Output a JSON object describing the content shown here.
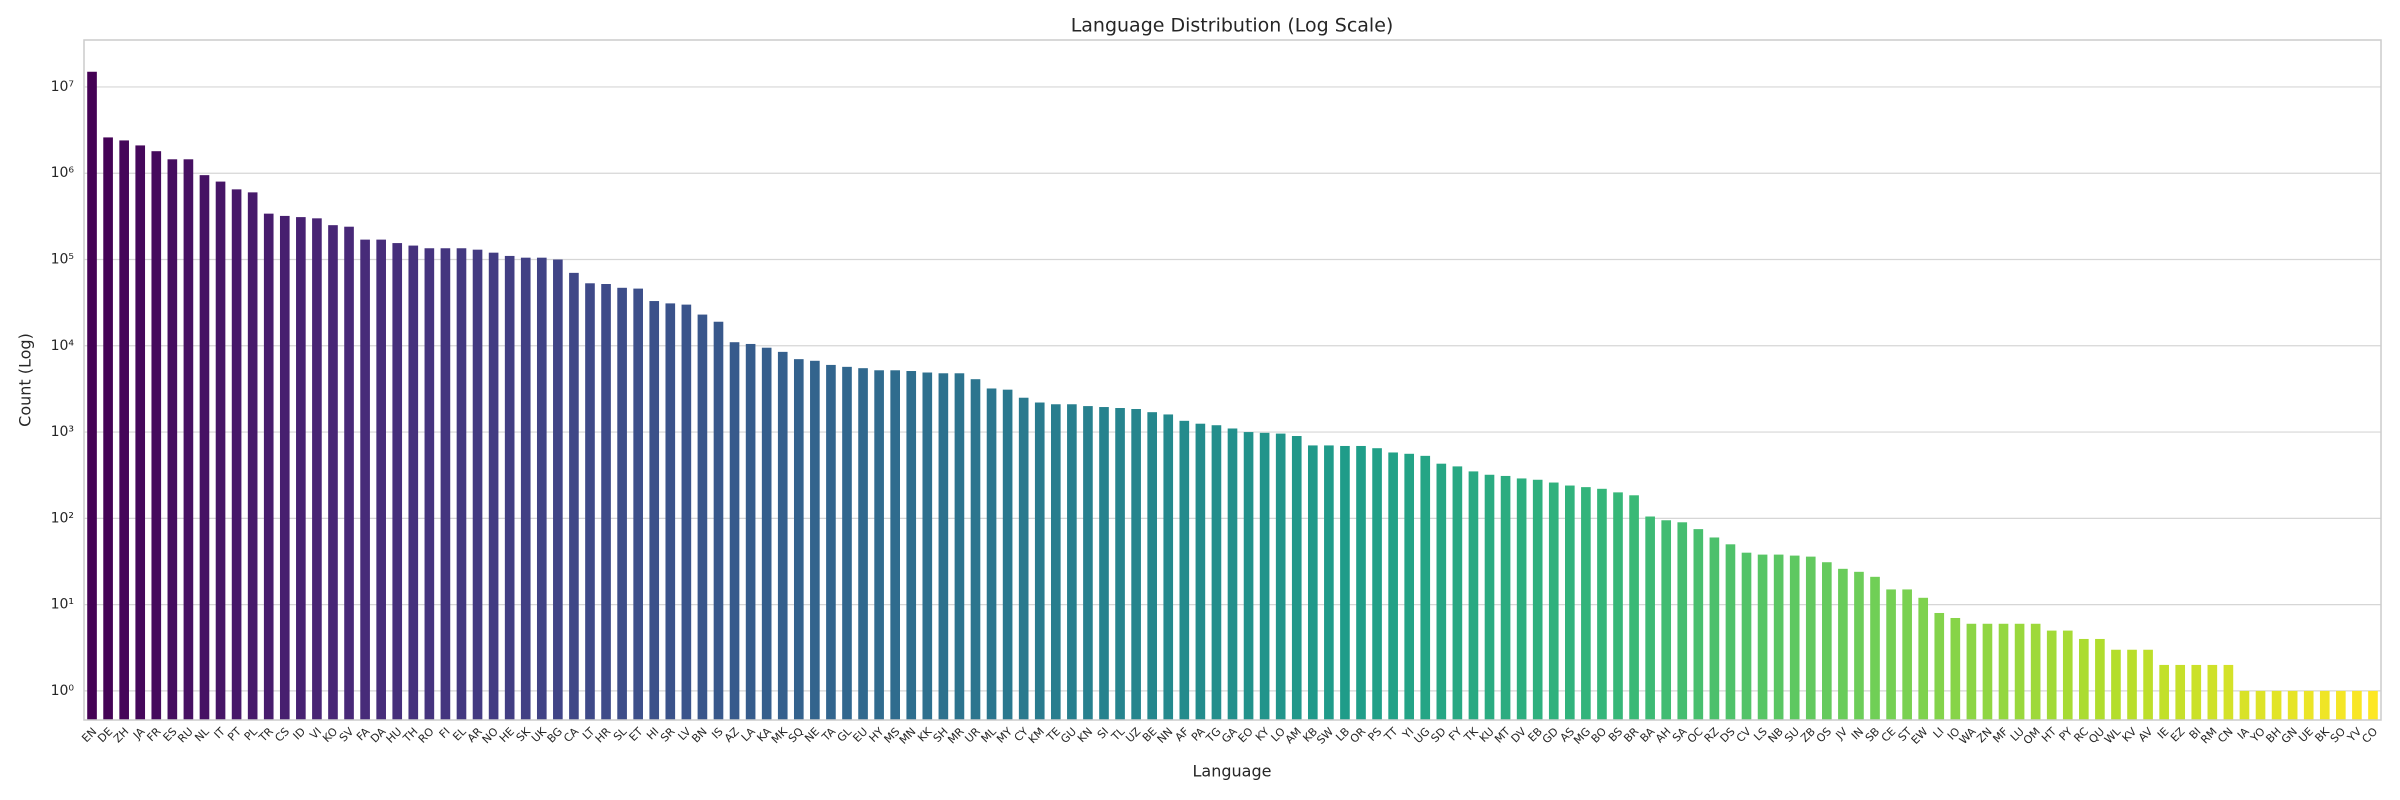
{
  "chart_data": {
    "type": "bar",
    "title": "Language Distribution (Log Scale)",
    "x_label": "Language",
    "y_label": "Count (Log)",
    "categories": [
      "EN",
      "DE",
      "ZH",
      "JA",
      "FR",
      "ES",
      "RU",
      "NL",
      "IT",
      "PT",
      "PL",
      "TR",
      "CS",
      "ID",
      "VI",
      "KO",
      "SV",
      "FA",
      "DA",
      "HU",
      "TH",
      "RO",
      "FI",
      "EL",
      "AR",
      "NO",
      "HE",
      "SK",
      "UK",
      "BG",
      "CA",
      "LT",
      "HR",
      "SL",
      "ET",
      "HI",
      "SR",
      "LV",
      "BN",
      "IS",
      "AZ",
      "LA",
      "KA",
      "MK",
      "SQ",
      "NE",
      "TA",
      "GL",
      "EU",
      "HY",
      "MS",
      "MN",
      "KK",
      "SH",
      "MR",
      "UR",
      "ML",
      "MY",
      "CY",
      "KM",
      "TE",
      "GU",
      "KN",
      "SI",
      "TL",
      "UZ",
      "BE",
      "NN",
      "AF",
      "PA",
      "TG",
      "GA",
      "EO",
      "KY",
      "LO",
      "AM",
      "KB",
      "SW",
      "LB",
      "OR",
      "PS",
      "TT",
      "YI",
      "UG",
      "SD",
      "FY",
      "TK",
      "KU",
      "MT",
      "DV",
      "EB",
      "GD",
      "AS",
      "MG",
      "BO",
      "BS",
      "BR",
      "BA",
      "AH",
      "SA",
      "OC",
      "RZ",
      "DS",
      "CV",
      "LS",
      "NB",
      "SU",
      "ZB",
      "OS",
      "JV",
      "IN",
      "SB",
      "CE",
      "ST",
      "EW",
      "LI",
      "IO",
      "WA",
      "ZN",
      "MF",
      "LU",
      "OM",
      "HT",
      "PY",
      "RC",
      "QU",
      "WL",
      "KV",
      "AV",
      "IE",
      "EZ",
      "BI",
      "RM",
      "CN",
      "IA",
      "YO",
      "BH",
      "GN",
      "UE",
      "BK",
      "SO",
      "YV",
      "CO"
    ],
    "values": [
      15000000,
      2600000,
      2400000,
      2100000,
      1800000,
      1450000,
      1450000,
      950000,
      800000,
      650000,
      600000,
      340000,
      320000,
      310000,
      300000,
      250000,
      240000,
      170000,
      170000,
      155000,
      145000,
      135000,
      135000,
      135000,
      130000,
      120000,
      110000,
      105000,
      105000,
      100000,
      70000,
      53000,
      52000,
      47000,
      46000,
      33000,
      31000,
      30000,
      23000,
      19000,
      11000,
      10500,
      9500,
      8500,
      7000,
      6700,
      6000,
      5700,
      5500,
      5200,
      5200,
      5100,
      4900,
      4800,
      4800,
      4100,
      3200,
      3100,
      2500,
      2200,
      2100,
      2100,
      2000,
      1950,
      1900,
      1850,
      1700,
      1600,
      1350,
      1250,
      1200,
      1100,
      1000,
      980,
      960,
      900,
      700,
      700,
      690,
      690,
      650,
      580,
      560,
      530,
      430,
      400,
      350,
      320,
      310,
      290,
      280,
      260,
      240,
      230,
      220,
      200,
      185,
      105,
      95,
      90,
      75,
      60,
      50,
      40,
      38,
      38,
      37,
      36,
      31,
      26,
      24,
      21,
      15,
      15,
      12,
      8,
      7,
      6,
      6,
      6,
      6,
      6,
      5,
      5,
      4,
      4,
      3,
      3,
      3,
      2,
      2,
      2,
      2,
      2,
      1,
      1,
      1,
      1,
      1,
      1,
      1,
      1,
      1
    ],
    "palette": "viridis",
    "log_scale": true,
    "grid": true,
    "ylim": [
      0.46,
      35000000
    ],
    "yticks": [
      {
        "value": 1,
        "label": "10⁰"
      },
      {
        "value": 10,
        "label": "10¹"
      },
      {
        "value": 100,
        "label": "10²"
      },
      {
        "value": 1000,
        "label": "10³"
      },
      {
        "value": 10000,
        "label": "10⁴"
      },
      {
        "value": 100000,
        "label": "10⁵"
      },
      {
        "value": 1000000,
        "label": "10⁶"
      },
      {
        "value": 10000000,
        "label": "10⁷"
      }
    ]
  }
}
